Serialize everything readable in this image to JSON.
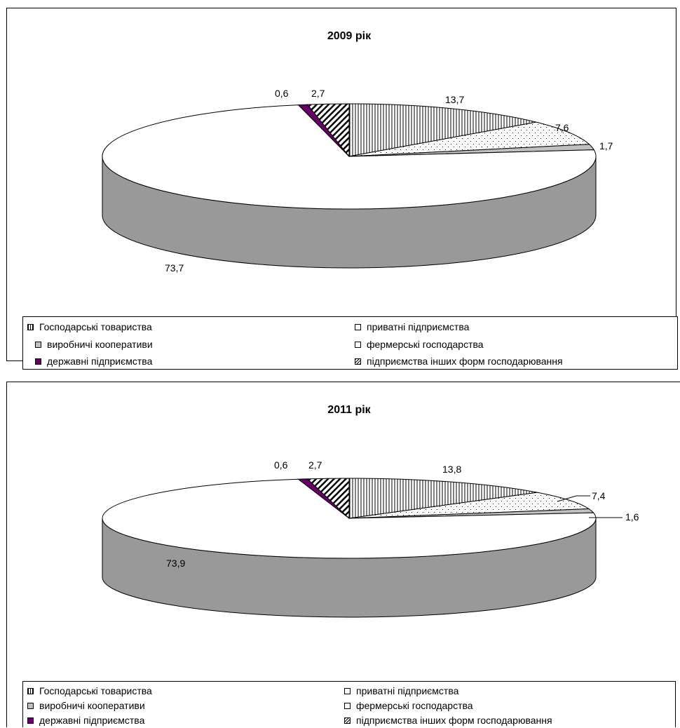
{
  "chart_data": [
    {
      "type": "pie",
      "title": "2009 рік",
      "categories": [
        "Господарські товариства",
        "приватні підприємства",
        "виробничі кооперативи",
        "фермерські господарства",
        "державні підприємства",
        "підприємства  інших форм господарювання"
      ],
      "series": [
        {
          "values": [
            13.7,
            7.6,
            1.7,
            73.7,
            0.6,
            2.7
          ]
        }
      ],
      "data_labels": [
        "13,7",
        "7,6",
        "1,7",
        "73,7",
        "0,6",
        "2,7"
      ],
      "legend_position": "bottom"
    },
    {
      "type": "pie",
      "title": "2011 рік",
      "categories": [
        "Господарські товариства",
        "приватні підприємства",
        "виробничі кооперативи",
        "фермерські господарства",
        "державні підприємства",
        "підприємства інших форм господарювання"
      ],
      "series": [
        {
          "values": [
            13.8,
            7.4,
            1.6,
            73.9,
            0.6,
            2.7
          ]
        }
      ],
      "data_labels": [
        "13,8",
        "7,4",
        "1,6",
        "73,9",
        "0,6",
        "2,7"
      ],
      "legend_position": "bottom"
    }
  ],
  "colors": {
    "side": "#999999",
    "state": "#660066",
    "coop": "#c0c0c0",
    "white": "#ffffff",
    "stroke": "#000000"
  },
  "slice_fills": [
    "vstripe",
    "dots",
    "coop",
    "white",
    "state",
    "diag"
  ]
}
